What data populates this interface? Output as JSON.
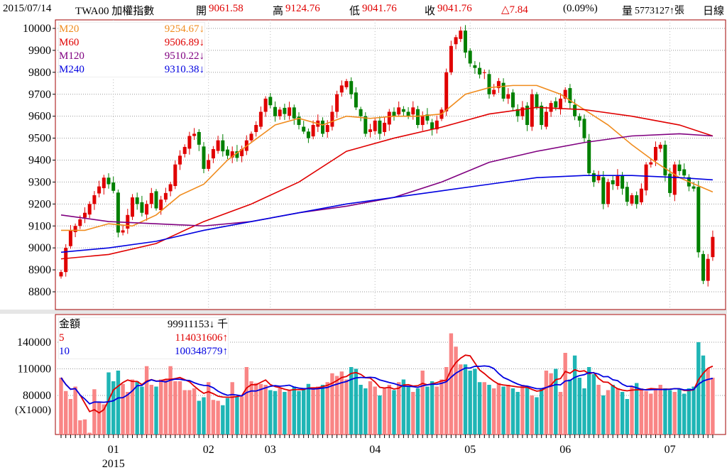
{
  "header": {
    "date": "2015/07/14",
    "symbol": "TWA00 加權指數",
    "open_label": "開",
    "open": "9061.58",
    "high_label": "高",
    "high": "9124.76",
    "low_label": "低",
    "low": "9041.76",
    "close_label": "收",
    "close": "9041.76",
    "change": "△7.84",
    "change_pct": "(0.09%)",
    "volume_label": "量",
    "volume": "5773127↑張",
    "period": "日線"
  },
  "colors": {
    "up": "#e00000",
    "down": "#008000",
    "vol_up": "#f98585",
    "vol_down": "#1fb5b5",
    "m20": "#f08c1e",
    "m60": "#e00000",
    "m120": "#800080",
    "m240": "#0000e0",
    "frame": "#a00000"
  },
  "price_legend": [
    {
      "name": "M20",
      "value": "9254.67↓",
      "color": "#f08c1e"
    },
    {
      "name": "M60",
      "value": "9506.89↓",
      "color": "#e00000"
    },
    {
      "name": "M120",
      "value": "9510.22↓",
      "color": "#800080"
    },
    {
      "name": "M240",
      "value": "9310.38↓",
      "color": "#0000e0"
    }
  ],
  "volume_legend": [
    {
      "name": "金額",
      "value": "99911153↓ 千",
      "color": "#000000"
    },
    {
      "name": "5",
      "value": "114031606↑",
      "color": "#e00000"
    },
    {
      "name": "10",
      "value": "100348779↑",
      "color": "#0000e0"
    }
  ],
  "chart_data": {
    "type": "candlestick",
    "price_ylim": [
      8750,
      10050
    ],
    "price_ticks": [
      "10000",
      "9900",
      "9800",
      "9700",
      "9600",
      "9500",
      "9400",
      "9300",
      "9200",
      "9100",
      "9000",
      "8900",
      "8800"
    ],
    "volume_ylim": [
      36000,
      175000
    ],
    "volume_ticks": [
      "140000",
      "110000",
      "80000"
    ],
    "volume_unit": "(X1000)",
    "x_ticks": [
      {
        "index": 11,
        "label": "01"
      },
      {
        "index": 31,
        "label": "02"
      },
      {
        "index": 44,
        "label": "03"
      },
      {
        "index": 66,
        "label": "04"
      },
      {
        "index": 86,
        "label": "05"
      },
      {
        "index": 106,
        "label": "06"
      },
      {
        "index": 128,
        "label": "07"
      }
    ],
    "year_label": "2015",
    "closes": [
      8890,
      9000,
      9080,
      9100,
      9130,
      9160,
      9200,
      9240,
      9280,
      9320,
      9290,
      9260,
      9070,
      9080,
      9150,
      9230,
      9200,
      9160,
      9200,
      9250,
      9180,
      9220,
      9250,
      9290,
      9380,
      9420,
      9460,
      9510,
      9520,
      9470,
      9360,
      9400,
      9450,
      9490,
      9440,
      9420,
      9440,
      9410,
      9450,
      9490,
      9520,
      9560,
      9620,
      9680,
      9650,
      9600,
      9630,
      9610,
      9640,
      9590,
      9560,
      9530,
      9500,
      9560,
      9580,
      9520,
      9560,
      9620,
      9700,
      9740,
      9760,
      9700,
      9640,
      9600,
      9520,
      9540,
      9580,
      9520,
      9570,
      9620,
      9600,
      9640,
      9620,
      9600,
      9640,
      9560,
      9600,
      9580,
      9540,
      9580,
      9630,
      9800,
      9920,
      9960,
      9990,
      9890,
      9840,
      9820,
      9790,
      9800,
      9700,
      9720,
      9760,
      9680,
      9700,
      9640,
      9600,
      9640,
      9560,
      9700,
      9640,
      9560,
      9620,
      9660,
      9640,
      9680,
      9720,
      9660,
      9600,
      9580,
      9500,
      9340,
      9300,
      9330,
      9200,
      9300,
      9290,
      9330,
      9270,
      9210,
      9240,
      9200,
      9270,
      9380,
      9390,
      9460,
      9470,
      9330,
      9250,
      9380,
      9350,
      9330,
      9280,
      9270,
      8980,
      8850,
      8950,
      9050
    ],
    "volumes": [
      100000,
      85000,
      76000,
      90000,
      52000,
      53000,
      38000,
      87000,
      72000,
      70000,
      106000,
      96000,
      108000,
      93000,
      84000,
      98000,
      96000,
      90000,
      113000,
      92000,
      90000,
      98000,
      98000,
      113000,
      96000,
      96000,
      86000,
      86000,
      88000,
      74000,
      78000,
      95000,
      75000,
      74000,
      69000,
      77000,
      95000,
      79000,
      79000,
      112000,
      96000,
      94000,
      93000,
      92000,
      86000,
      85000,
      88000,
      84000,
      86000,
      90000,
      85000,
      88000,
      93000,
      87000,
      90000,
      92000,
      95000,
      105000,
      102000,
      107000,
      98000,
      112000,
      110000,
      92000,
      88000,
      96000,
      90000,
      80000,
      88000,
      92000,
      86000,
      95000,
      98000,
      90000,
      84000,
      88000,
      108000,
      90000,
      96000,
      90000,
      98000,
      112000,
      150000,
      135000,
      115000,
      115000,
      108000,
      110000,
      95000,
      95000,
      92000,
      88000,
      94000,
      90000,
      92000,
      88000,
      84000,
      92000,
      90000,
      80000,
      78000,
      88000,
      108000,
      105000,
      110000,
      84000,
      128000,
      98000,
      125000,
      100000,
      88000,
      112000,
      104000,
      92000,
      80000,
      86000,
      92000,
      88000,
      84000,
      76000,
      90000,
      94000,
      88000,
      85000,
      82000,
      88000,
      92000,
      88000,
      86000,
      84000,
      88000,
      82000,
      88000,
      90000,
      140000,
      125000,
      110000,
      100000
    ],
    "ma_series": [
      {
        "name": "M20",
        "points": [
          [
            0,
            9080
          ],
          [
            5,
            9080
          ],
          [
            10,
            9110
          ],
          [
            15,
            9100
          ],
          [
            20,
            9150
          ],
          [
            25,
            9240
          ],
          [
            30,
            9290
          ],
          [
            35,
            9400
          ],
          [
            40,
            9480
          ],
          [
            45,
            9560
          ],
          [
            50,
            9590
          ],
          [
            55,
            9560
          ],
          [
            60,
            9600
          ],
          [
            65,
            9590
          ],
          [
            70,
            9600
          ],
          [
            75,
            9600
          ],
          [
            80,
            9610
          ],
          [
            85,
            9700
          ],
          [
            90,
            9730
          ],
          [
            95,
            9740
          ],
          [
            100,
            9740
          ],
          [
            105,
            9700
          ],
          [
            110,
            9630
          ],
          [
            115,
            9560
          ],
          [
            120,
            9470
          ],
          [
            125,
            9390
          ],
          [
            130,
            9320
          ],
          [
            137,
            9255
          ]
        ]
      },
      {
        "name": "M60",
        "points": [
          [
            0,
            8950
          ],
          [
            10,
            8970
          ],
          [
            20,
            9020
          ],
          [
            30,
            9120
          ],
          [
            40,
            9200
          ],
          [
            50,
            9300
          ],
          [
            60,
            9440
          ],
          [
            70,
            9500
          ],
          [
            80,
            9550
          ],
          [
            90,
            9610
          ],
          [
            100,
            9640
          ],
          [
            110,
            9630
          ],
          [
            120,
            9600
          ],
          [
            130,
            9560
          ],
          [
            137,
            9510
          ]
        ]
      },
      {
        "name": "M120",
        "points": [
          [
            0,
            9150
          ],
          [
            10,
            9120
          ],
          [
            20,
            9110
          ],
          [
            30,
            9100
          ],
          [
            40,
            9120
          ],
          [
            50,
            9160
          ],
          [
            60,
            9190
          ],
          [
            70,
            9230
          ],
          [
            80,
            9300
          ],
          [
            90,
            9390
          ],
          [
            100,
            9440
          ],
          [
            110,
            9480
          ],
          [
            120,
            9510
          ],
          [
            130,
            9520
          ],
          [
            137,
            9510
          ]
        ]
      },
      {
        "name": "M240",
        "points": [
          [
            0,
            8980
          ],
          [
            10,
            9000
          ],
          [
            20,
            9030
          ],
          [
            30,
            9080
          ],
          [
            40,
            9120
          ],
          [
            50,
            9160
          ],
          [
            60,
            9200
          ],
          [
            70,
            9230
          ],
          [
            80,
            9260
          ],
          [
            90,
            9290
          ],
          [
            100,
            9320
          ],
          [
            110,
            9330
          ],
          [
            120,
            9330
          ],
          [
            130,
            9320
          ],
          [
            137,
            9310
          ]
        ]
      }
    ]
  }
}
